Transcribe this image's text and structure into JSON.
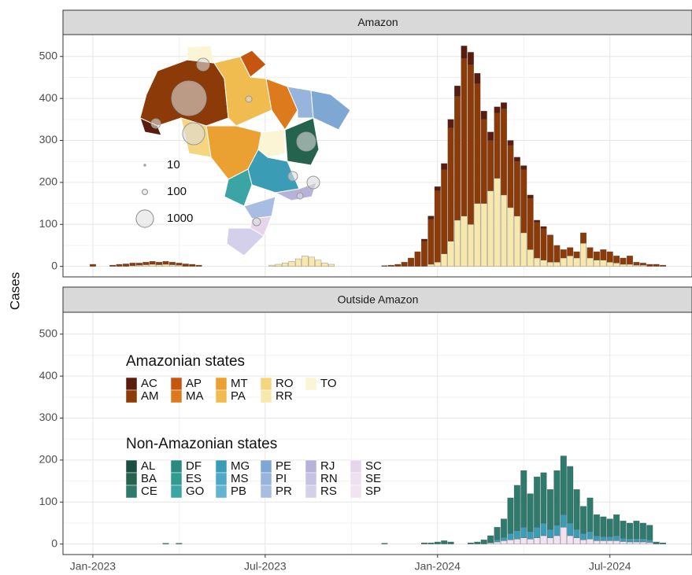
{
  "chart_data": [
    {
      "type": "bar",
      "stacked": true,
      "title": "Amazon",
      "y_label": "Cases",
      "x": [
        0,
        1,
        2,
        3,
        4,
        5,
        6,
        7,
        8,
        9,
        10,
        11,
        12,
        13,
        14,
        15,
        16,
        17,
        18,
        19,
        20,
        21,
        22,
        23,
        24,
        25,
        26,
        27,
        28,
        29,
        30,
        31,
        32,
        33,
        34,
        35,
        36,
        37,
        38,
        39,
        40,
        41,
        42,
        43,
        44,
        45,
        46,
        47,
        48,
        49,
        50,
        51,
        52,
        53,
        54,
        55,
        56,
        57,
        58,
        59,
        60,
        61,
        62,
        63,
        64,
        65,
        66,
        67,
        68,
        69,
        70,
        71,
        72,
        73,
        74,
        75,
        76,
        77,
        78,
        79,
        80,
        81,
        82,
        83,
        84,
        85,
        86
      ],
      "xlim": [
        -4.5,
        90.5
      ],
      "xticks": [
        0,
        26,
        52,
        78
      ],
      "ylim": [
        -25,
        552
      ],
      "yticks": [
        0,
        100,
        200,
        300,
        400,
        500
      ],
      "grid": true,
      "series": [
        {
          "name": "RR",
          "color": "#f7e9ad",
          "values": [
            0,
            0,
            0,
            0,
            0,
            0,
            2,
            3,
            4,
            5,
            4,
            5,
            4,
            3,
            0,
            0,
            0,
            0,
            0,
            0,
            0,
            0,
            0,
            0,
            0,
            0,
            0,
            3,
            5,
            8,
            12,
            18,
            25,
            22,
            15,
            8,
            5,
            0,
            0,
            0,
            0,
            0,
            0,
            0,
            0,
            0,
            0,
            0,
            0,
            0,
            0,
            5,
            10,
            30,
            60,
            110,
            120,
            100,
            150,
            150,
            180,
            210,
            170,
            140,
            120,
            80,
            40,
            20,
            15,
            10,
            10,
            20,
            25,
            20,
            55,
            20,
            15,
            15,
            10,
            8,
            5,
            5,
            3,
            3,
            0,
            0,
            0
          ]
        },
        {
          "name": "AM",
          "color": "#8c3a07",
          "values": [
            5,
            0,
            0,
            3,
            5,
            6,
            6,
            5,
            6,
            7,
            6,
            7,
            6,
            5,
            6,
            5,
            3,
            0,
            0,
            0,
            0,
            0,
            0,
            0,
            0,
            0,
            0,
            0,
            0,
            0,
            0,
            0,
            0,
            0,
            0,
            0,
            0,
            0,
            0,
            0,
            0,
            0,
            0,
            0,
            2,
            3,
            5,
            10,
            20,
            35,
            60,
            107,
            170,
            200,
            270,
            295,
            375,
            380,
            285,
            200,
            120,
            155,
            205,
            148,
            130,
            150,
            122,
            85,
            75,
            65,
            40,
            20,
            20,
            15,
            25,
            25,
            20,
            25,
            25,
            17,
            15,
            20,
            7,
            5,
            5,
            5,
            3
          ]
        },
        {
          "name": "AC",
          "color": "#5a1c0c",
          "values": [
            0,
            0,
            0,
            0,
            0,
            0,
            0,
            0,
            0,
            0,
            0,
            0,
            0,
            0,
            0,
            0,
            0,
            0,
            0,
            0,
            0,
            0,
            0,
            0,
            0,
            0,
            0,
            0,
            0,
            0,
            0,
            0,
            0,
            0,
            0,
            0,
            0,
            0,
            0,
            0,
            0,
            0,
            0,
            0,
            0,
            0,
            0,
            0,
            0,
            0,
            5,
            8,
            10,
            15,
            20,
            25,
            30,
            30,
            25,
            20,
            20,
            15,
            15,
            12,
            10,
            10,
            8,
            5,
            5,
            0,
            0,
            0,
            0,
            0,
            0,
            0,
            0,
            0,
            0,
            0,
            0,
            0,
            0,
            0,
            0,
            0,
            0
          ]
        }
      ],
      "size_legend": [
        10,
        100,
        1000
      ]
    },
    {
      "type": "bar",
      "stacked": true,
      "title": "Outside Amazon",
      "x": [
        0,
        1,
        2,
        3,
        4,
        5,
        6,
        7,
        8,
        9,
        10,
        11,
        12,
        13,
        14,
        15,
        16,
        17,
        18,
        19,
        20,
        21,
        22,
        23,
        24,
        25,
        26,
        27,
        28,
        29,
        30,
        31,
        32,
        33,
        34,
        35,
        36,
        37,
        38,
        39,
        40,
        41,
        42,
        43,
        44,
        45,
        46,
        47,
        48,
        49,
        50,
        51,
        52,
        53,
        54,
        55,
        56,
        57,
        58,
        59,
        60,
        61,
        62,
        63,
        64,
        65,
        66,
        67,
        68,
        69,
        70,
        71,
        72,
        73,
        74,
        75,
        76,
        77,
        78,
        79,
        80,
        81,
        82,
        83,
        84,
        85,
        86
      ],
      "xlim": [
        -4.5,
        90.5
      ],
      "xticks": [
        {
          "value": 0,
          "label": "Jan-2023"
        },
        {
          "value": 26,
          "label": "Jul-2023"
        },
        {
          "value": 52,
          "label": "Jan-2024"
        },
        {
          "value": 78,
          "label": "Jul-2024"
        }
      ],
      "ylim": [
        -25,
        552
      ],
      "yticks": [
        0,
        100,
        200,
        300,
        400,
        500
      ],
      "grid": true,
      "series": [
        {
          "name": "SP",
          "color": "#f2e3f0",
          "values": [
            0,
            0,
            0,
            0,
            0,
            0,
            0,
            0,
            0,
            0,
            0,
            0,
            0,
            0,
            0,
            0,
            0,
            0,
            0,
            0,
            0,
            0,
            0,
            0,
            0,
            0,
            0,
            0,
            0,
            0,
            0,
            0,
            0,
            0,
            0,
            0,
            0,
            0,
            0,
            0,
            0,
            0,
            0,
            0,
            0,
            0,
            0,
            0,
            0,
            0,
            0,
            0,
            0,
            0,
            0,
            0,
            0,
            0,
            0,
            0,
            3,
            5,
            8,
            10,
            12,
            15,
            12,
            15,
            20,
            15,
            20,
            40,
            20,
            15,
            10,
            12,
            8,
            8,
            8,
            8,
            6,
            5,
            5,
            5,
            4,
            0,
            0
          ]
        },
        {
          "name": "MG",
          "color": "#3a9cb5",
          "values": [
            0,
            0,
            0,
            0,
            0,
            0,
            0,
            0,
            0,
            0,
            0,
            0,
            0,
            0,
            0,
            0,
            0,
            0,
            0,
            0,
            0,
            0,
            0,
            0,
            0,
            0,
            0,
            0,
            0,
            0,
            0,
            0,
            0,
            0,
            0,
            0,
            0,
            0,
            0,
            0,
            0,
            0,
            0,
            0,
            0,
            0,
            0,
            0,
            0,
            0,
            0,
            0,
            0,
            0,
            0,
            0,
            0,
            0,
            0,
            0,
            0,
            5,
            8,
            15,
            20,
            25,
            18,
            25,
            30,
            20,
            25,
            30,
            30,
            20,
            15,
            18,
            12,
            10,
            10,
            12,
            8,
            8,
            8,
            8,
            6,
            0,
            0
          ]
        },
        {
          "name": "CE",
          "color": "#2e7a6c",
          "values": [
            0,
            0,
            0,
            0,
            0,
            0,
            0,
            0,
            0,
            0,
            0,
            2,
            0,
            2,
            0,
            0,
            0,
            0,
            0,
            0,
            0,
            0,
            0,
            0,
            0,
            0,
            0,
            0,
            0,
            0,
            0,
            0,
            0,
            0,
            0,
            0,
            0,
            0,
            0,
            0,
            0,
            0,
            0,
            0,
            2,
            0,
            0,
            0,
            0,
            0,
            3,
            3,
            5,
            8,
            5,
            0,
            0,
            3,
            5,
            10,
            17,
            30,
            44,
            85,
            108,
            135,
            90,
            120,
            120,
            95,
            130,
            140,
            135,
            95,
            65,
            80,
            50,
            47,
            42,
            50,
            41,
            37,
            42,
            37,
            35,
            5,
            3
          ]
        }
      ],
      "legend": {
        "groups": [
          {
            "title": "Amazonian states",
            "rows": 2,
            "items": [
              {
                "name": "AC",
                "color": "#5a1c0c"
              },
              {
                "name": "AM",
                "color": "#8c3a07"
              },
              {
                "name": "AP",
                "color": "#c4560f"
              },
              {
                "name": "MA",
                "color": "#de7a1e"
              },
              {
                "name": "MT",
                "color": "#eaa132"
              },
              {
                "name": "PA",
                "color": "#f0bb4f"
              },
              {
                "name": "RO",
                "color": "#f5d57d"
              },
              {
                "name": "RR",
                "color": "#f7e9ad"
              },
              {
                "name": "TO",
                "color": "#fbf5d6"
              }
            ]
          },
          {
            "title": "Non-Amazonian states",
            "rows": 3,
            "items": [
              {
                "name": "AL",
                "color": "#1d4c43"
              },
              {
                "name": "BA",
                "color": "#25634f"
              },
              {
                "name": "CE",
                "color": "#2e7a6c"
              },
              {
                "name": "DF",
                "color": "#2a8a82"
              },
              {
                "name": "ES",
                "color": "#309a93"
              },
              {
                "name": "GO",
                "color": "#3aa5a4"
              },
              {
                "name": "MG",
                "color": "#3a9cb5"
              },
              {
                "name": "MS",
                "color": "#4fa9c5"
              },
              {
                "name": "PB",
                "color": "#63b4cf"
              },
              {
                "name": "PE",
                "color": "#7fa7d4"
              },
              {
                "name": "PI",
                "color": "#96b4dc"
              },
              {
                "name": "PR",
                "color": "#a8bde1"
              },
              {
                "name": "RJ",
                "color": "#b5b3da"
              },
              {
                "name": "RN",
                "color": "#c5c2e3"
              },
              {
                "name": "RS",
                "color": "#d5d0ea"
              },
              {
                "name": "SC",
                "color": "#e5d6ec"
              },
              {
                "name": "SE",
                "color": "#ede0f0"
              },
              {
                "name": "SP",
                "color": "#f2e3f0"
              }
            ]
          }
        ]
      }
    }
  ]
}
